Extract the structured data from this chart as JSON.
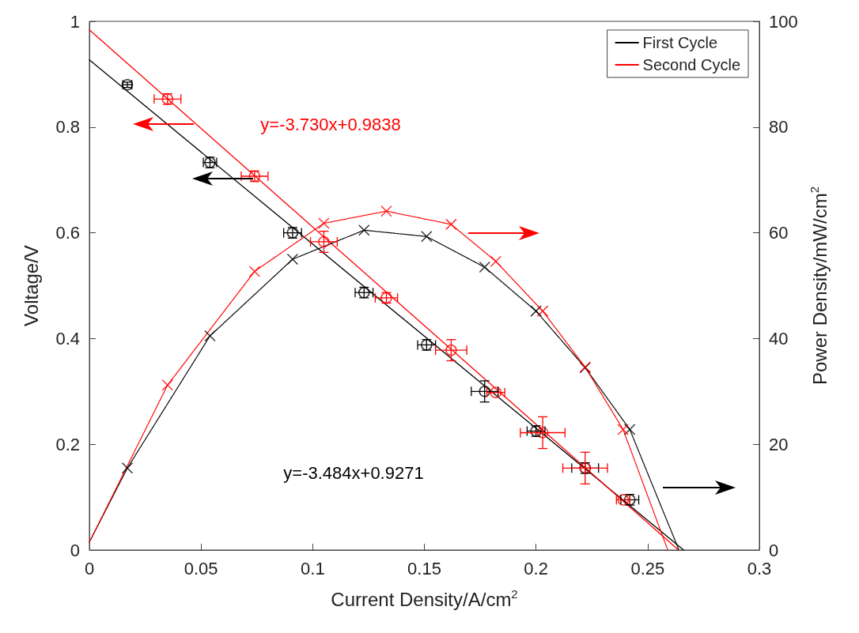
{
  "chart_data": {
    "type": "scatter",
    "xlabel": "Current Density/A/cm$^{2}$",
    "ylabel": "Voltage/V",
    "y2label": "Power Density/mW/cm$^{2}$",
    "xlim": [
      0,
      0.3
    ],
    "xticks": [
      0,
      0.05,
      0.1,
      0.15,
      0.2,
      0.25,
      0.3
    ],
    "ylim": [
      0,
      1
    ],
    "yticks": [
      0,
      0.2,
      0.4,
      0.6,
      0.8,
      1
    ],
    "y2lim": [
      0,
      100
    ],
    "y2ticks": [
      0,
      20,
      40,
      60,
      80,
      100
    ],
    "grid": false,
    "legend": "top right",
    "annotations": [
      "y=-3.730x+0.9838",
      "y=-3.484x+0.9271"
    ],
    "series": [
      {
        "type": "scatter",
        "marker": "circle",
        "color": "#000000",
        "x": [
          0.017,
          0.054,
          0.091,
          0.123,
          0.151,
          0.177,
          0.2,
          0.222,
          0.242
        ],
        "values": [
          0.88,
          0.733,
          0.6,
          0.487,
          0.388,
          0.3,
          0.225,
          0.155,
          0.095
        ],
        "xerrors": [
          0.002,
          0.003,
          0.004,
          0.004,
          0.004,
          0.006,
          0.004,
          0.006,
          0.004
        ],
        "errors": [
          0.005,
          0.01,
          0.01,
          0.01,
          0.01,
          0.02,
          0.01,
          0.01,
          0.01
        ]
      },
      {
        "type": "scatter",
        "marker": "circle",
        "color": "#ff0000",
        "x": [
          0.035,
          0.074,
          0.105,
          0.133,
          0.162,
          0.182,
          0.203,
          0.222,
          0.239
        ],
        "values": [
          0.853,
          0.707,
          0.583,
          0.477,
          0.378,
          0.298,
          0.222,
          0.155,
          0.095
        ],
        "xerrors": [
          0.006,
          0.006,
          0.006,
          0.005,
          0.007,
          0.004,
          0.01,
          0.01,
          0.003
        ],
        "errors": [
          0.01,
          0.01,
          0.02,
          0.01,
          0.02,
          null,
          0.03,
          0.03,
          null
        ]
      },
      {
        "type": "line",
        "marker": "none",
        "line_style": "solid",
        "color": "#000000",
        "x": [
          0,
          0.2661
        ],
        "values": [
          0.927,
          0
        ]
      },
      {
        "type": "line",
        "marker": "none",
        "line_style": "solid",
        "color": "#ff0000",
        "x": [
          0,
          0.2638
        ],
        "values": [
          0.984,
          0
        ]
      },
      {
        "type": "scatter",
        "axis": "y2",
        "marker": "cross",
        "color": "#000000",
        "x": [
          0.017,
          0.054,
          0.091,
          0.123,
          0.151,
          0.177,
          0.2,
          0.222,
          0.242
        ],
        "values": [
          15.5,
          40.5,
          55,
          60.5,
          59.3,
          53.5,
          45.2,
          34.5,
          22.8
        ]
      },
      {
        "type": "scatter",
        "axis": "y2",
        "marker": "cross",
        "color": "#ff0000",
        "x": [
          0.035,
          0.074,
          0.105,
          0.133,
          0.162,
          0.182,
          0.203,
          0.222,
          0.239
        ],
        "values": [
          31.2,
          52.7,
          61.8,
          64.1,
          61.6,
          54.6,
          45.2,
          34.6,
          22.8
        ]
      },
      {
        "type": "line",
        "axis": "y2",
        "name": "First Cycle",
        "marker": "none",
        "line_style": "dotted",
        "color": "#000000",
        "x": [
          0,
          0.017,
          0.054,
          0.091,
          0.123,
          0.151,
          0.177,
          0.2,
          0.222,
          0.242,
          0.264
        ],
        "values": [
          1.5,
          15.5,
          40.5,
          55,
          60.5,
          59.3,
          53.5,
          45.2,
          34.5,
          22.8,
          0
        ]
      },
      {
        "type": "line",
        "axis": "y2",
        "name": "Second Cycle",
        "marker": "none",
        "line_style": "dotted",
        "color": "#ff0000",
        "x": [
          0,
          0.035,
          0.074,
          0.105,
          0.133,
          0.162,
          0.182,
          0.203,
          0.222,
          0.239,
          0.259
        ],
        "values": [
          1.5,
          31.2,
          52.7,
          61.8,
          64.1,
          61.6,
          54.6,
          45.2,
          34.6,
          22.8,
          0
        ]
      }
    ]
  }
}
